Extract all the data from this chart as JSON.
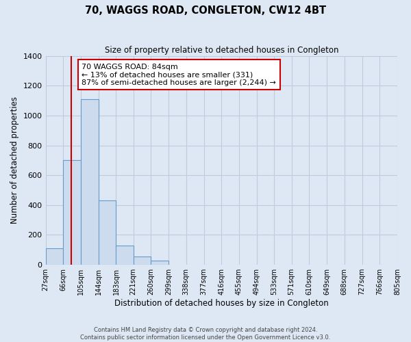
{
  "title": "70, WAGGS ROAD, CONGLETON, CW12 4BT",
  "subtitle": "Size of property relative to detached houses in Congleton",
  "xlabel": "Distribution of detached houses by size in Congleton",
  "ylabel": "Number of detached properties",
  "bin_labels": [
    "27sqm",
    "66sqm",
    "105sqm",
    "144sqm",
    "183sqm",
    "221sqm",
    "260sqm",
    "299sqm",
    "338sqm",
    "377sqm",
    "416sqm",
    "455sqm",
    "494sqm",
    "533sqm",
    "571sqm",
    "610sqm",
    "649sqm",
    "688sqm",
    "727sqm",
    "766sqm",
    "805sqm"
  ],
  "bar_heights": [
    110,
    700,
    1110,
    430,
    130,
    55,
    30,
    0,
    0,
    0,
    0,
    0,
    0,
    0,
    0,
    0,
    0,
    0,
    0,
    0
  ],
  "bar_color": "#ccdcee",
  "bar_edge_color": "#6699cc",
  "grid_color": "#bbccdd",
  "background_color": "#dde8f4",
  "property_line_x": 84,
  "bin_edges": [
    27,
    66,
    105,
    144,
    183,
    221,
    260,
    299,
    338,
    377,
    416,
    455,
    494,
    533,
    571,
    610,
    649,
    688,
    727,
    766,
    805
  ],
  "annotation_text": "70 WAGGS ROAD: 84sqm\n← 13% of detached houses are smaller (331)\n87% of semi-detached houses are larger (2,244) →",
  "annotation_box_color": "#ffffff",
  "annotation_box_edge_color": "#cc0000",
  "red_line_color": "#cc0000",
  "ylim": [
    0,
    1400
  ],
  "yticks": [
    0,
    200,
    400,
    600,
    800,
    1000,
    1200,
    1400
  ],
  "footer_line1": "Contains HM Land Registry data © Crown copyright and database right 2024.",
  "footer_line2": "Contains public sector information licensed under the Open Government Licence v3.0."
}
